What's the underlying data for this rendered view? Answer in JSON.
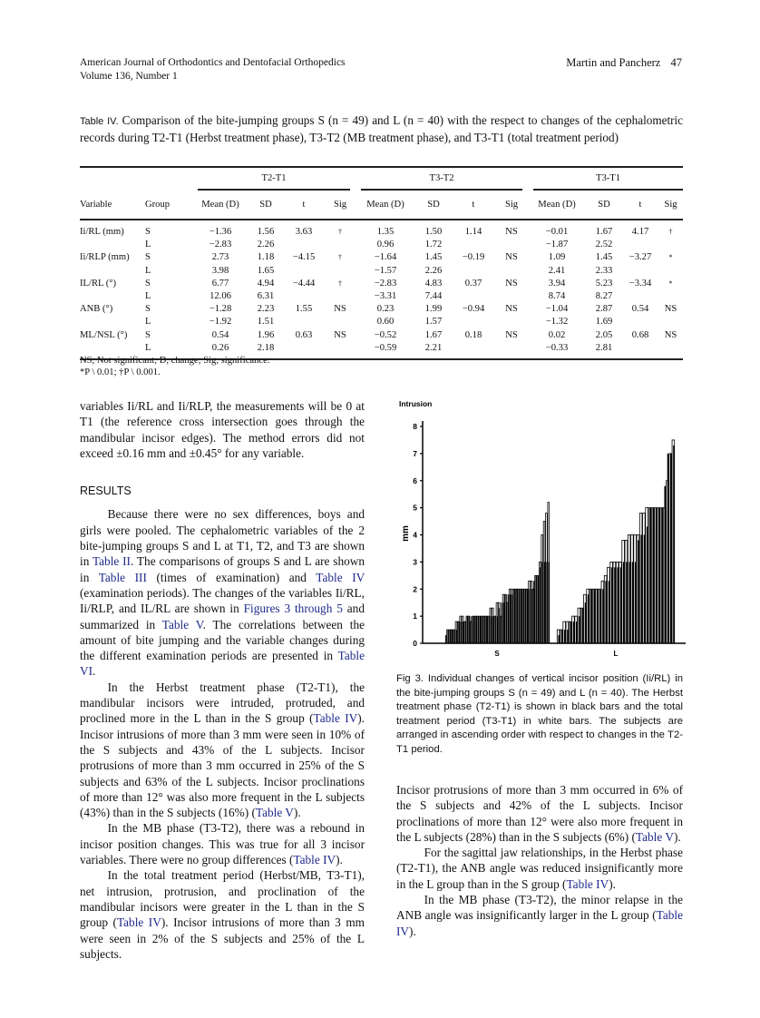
{
  "header": {
    "journal": "American Journal of Orthodontics and Dentofacial Orthopedics",
    "volume": "Volume 136, Number 1",
    "authors": "Martin and Pancherz",
    "page": "47"
  },
  "table": {
    "label": "Table IV.",
    "caption": "Comparison of the bite-jumping groups S (n = 49) and L (n = 40) with the respect to changes of the cephalometric records during T2-T1 (Herbst treatment phase), T3-T2 (MB treatment phase), and T3-T1 (total treatment period)",
    "periods": [
      "T2-T1",
      "T3-T2",
      "T3-T1"
    ],
    "columns": [
      "Variable",
      "Group",
      "Mean (D)",
      "SD",
      "t",
      "Sig",
      "Mean (D)",
      "SD",
      "t",
      "Sig",
      "Mean (D)",
      "SD",
      "t",
      "Sig"
    ],
    "rows": [
      [
        "Ii/RL (mm)",
        "S",
        "−1.36",
        "1.56",
        "3.63",
        "†",
        "1.35",
        "1.50",
        "1.14",
        "NS",
        "−0.01",
        "1.67",
        "4.17",
        "†"
      ],
      [
        "",
        "L",
        "−2.83",
        "2.26",
        "",
        "",
        "0.96",
        "1.72",
        "",
        "",
        "−1.87",
        "2.52",
        "",
        ""
      ],
      [
        "Ii/RLP (mm)",
        "S",
        "2.73",
        "1.18",
        "−4.15",
        "†",
        "−1.64",
        "1.45",
        "−0.19",
        "NS",
        "1.09",
        "1.45",
        "−3.27",
        "*"
      ],
      [
        "",
        "L",
        "3.98",
        "1.65",
        "",
        "",
        "−1.57",
        "2.26",
        "",
        "",
        "2.41",
        "2.33",
        "",
        ""
      ],
      [
        "IL/RL (°)",
        "S",
        "6.77",
        "4.94",
        "−4.44",
        "†",
        "−2.83",
        "4.83",
        "0.37",
        "NS",
        "3.94",
        "5.23",
        "−3.34",
        "*"
      ],
      [
        "",
        "L",
        "12.06",
        "6.31",
        "",
        "",
        "−3.31",
        "7.44",
        "",
        "",
        "8.74",
        "8.27",
        "",
        ""
      ],
      [
        "ANB (°)",
        "S",
        "−1.28",
        "2.23",
        "1.55",
        "NS",
        "0.23",
        "1.99",
        "−0.94",
        "NS",
        "−1.04",
        "2.87",
        "0.54",
        "NS"
      ],
      [
        "",
        "L",
        "−1.92",
        "1.51",
        "",
        "",
        "0.60",
        "1.57",
        "",
        "",
        "−1.32",
        "1.69",
        "",
        ""
      ],
      [
        "ML/NSL (°)",
        "S",
        "0.54",
        "1.96",
        "0.63",
        "NS",
        "−0.52",
        "1.67",
        "0.18",
        "NS",
        "0.02",
        "2.05",
        "0.68",
        "NS"
      ],
      [
        "",
        "L",
        "0.26",
        "2.18",
        "",
        "",
        "−0.59",
        "2.21",
        "",
        "",
        "−0.33",
        "2.81",
        "",
        ""
      ]
    ],
    "footnote1": "NS, Not significant; D, change; Sig, significance.",
    "footnote2": "*P \\ 0.01; †P \\ 0.001."
  },
  "left_column": {
    "p1": [
      {
        "t": "variables Ii/RL and Ii/RLP, the measurements will be 0 at T1 (the reference cross intersection goes through the mandibular incisor edges). The method errors did not exceed ±0.16 mm and ±0.45° for any variable."
      }
    ],
    "heading": "RESULTS",
    "p2": [
      {
        "t": "Because there were no sex differences, boys and girls were pooled. The cephalometric variables of the 2 bite-jumping groups S and L at T1, T2, and T3 are shown in "
      },
      {
        "t": "Table II",
        "link": true
      },
      {
        "t": ". The comparisons of groups S and L are shown in "
      },
      {
        "t": "Table III",
        "link": true
      },
      {
        "t": " (times of examination) and "
      },
      {
        "t": "Table IV",
        "link": true
      },
      {
        "t": " (examination periods). The changes of the variables Ii/RL, Ii/RLP, and IL/RL are shown in "
      },
      {
        "t": "Figures 3 through 5",
        "link": true
      },
      {
        "t": " and summarized in "
      },
      {
        "t": "Table V",
        "link": true
      },
      {
        "t": ". The correlations between the amount of bite jumping and the variable changes during the different examination periods are presented in "
      },
      {
        "t": "Table VI",
        "link": true
      },
      {
        "t": "."
      }
    ],
    "p3": [
      {
        "t": "In the Herbst treatment phase (T2-T1), the mandibular incisors were intruded, protruded, and proclined more in the L than in the S group ("
      },
      {
        "t": "Table IV",
        "link": true
      },
      {
        "t": "). Incisor intrusions of more than 3 mm were seen in 10% of the S subjects and 43% of the L subjects. Incisor protrusions of more than 3 mm occurred in 25% of the S subjects and 63% of the L subjects. Incisor proclinations of more than 12° was also more frequent in the L subjects (43%) than in the S subjects (16%) ("
      },
      {
        "t": "Table V",
        "link": true
      },
      {
        "t": ")."
      }
    ],
    "p4": [
      {
        "t": "In the MB phase (T3-T2), there was a rebound in incisor position changes. This was true for all 3 incisor variables. There were no group differences ("
      },
      {
        "t": "Table IV",
        "link": true
      },
      {
        "t": ")."
      }
    ],
    "p5": [
      {
        "t": "In the total treatment period (Herbst/MB, T3-T1), net intrusion, protrusion, and proclination of the mandibular incisors were greater in the L than in the S group ("
      },
      {
        "t": "Table IV",
        "link": true
      },
      {
        "t": "). Incisor intrusions of more than 3 mm were seen in 2% of the S subjects and 25% of the L subjects."
      }
    ]
  },
  "right_column": {
    "p1": [
      {
        "t": "Incisor protrusions of more than 3 mm occurred in 6% of the S subjects and 42% of the L subjects. Incisor proclinations of more than 12° were also more frequent in the L subjects (28%) than in the S subjects (6%) ("
      },
      {
        "t": "Table V",
        "link": true
      },
      {
        "t": ")."
      }
    ],
    "p2": [
      {
        "t": "For the sagittal jaw relationships, in the Herbst phase (T2-T1), the ANB angle was reduced insignificantly more in the L group than in the S group ("
      },
      {
        "t": "Table IV",
        "link": true
      },
      {
        "t": ")."
      }
    ],
    "p3": [
      {
        "t": "In the MB phase (T3-T2), the minor relapse in the ANB angle was insignificantly larger in the L group ("
      },
      {
        "t": "Table IV",
        "link": true
      },
      {
        "t": ")."
      }
    ]
  },
  "figure": {
    "caption": "Fig 3. Individual changes of vertical incisor position (Ii/RL) in the bite-jumping groups S (n = 49) and L (n = 40). The Herbst treatment phase (T2-T1) is shown in black bars and the total treatment period (T3-T1) in white bars. The subjects are arranged in ascending order with respect to changes in the T2-T1 period."
  },
  "chart_data": {
    "type": "bar",
    "title": "Intrusion",
    "ylabel": "mm",
    "ylim": [
      0,
      8
    ],
    "yticks": [
      "0",
      "1",
      "2",
      "3",
      "4",
      "5",
      "6",
      "7",
      "8"
    ],
    "grid": false,
    "groups": [
      {
        "name": "S",
        "series": [
          {
            "name": "T2-T1",
            "color": "#000000",
            "values": [
              0.3,
              0.5,
              0.5,
              0.5,
              0.5,
              0.5,
              0.8,
              0.8,
              0.8,
              0.8,
              1.0,
              1.0,
              1.0,
              1.0,
              1.0,
              1.0,
              1.0,
              1.0,
              1.0,
              1.0,
              1.0,
              1.0,
              1.0,
              1.0,
              1.0,
              1.3,
              1.5,
              1.5,
              1.8,
              1.8,
              1.8,
              1.8,
              2.0,
              2.0,
              2.0,
              2.0,
              2.0,
              2.0,
              2.0,
              2.0,
              2.0,
              2.3,
              2.5,
              2.5,
              2.8,
              3.0,
              3.0,
              3.0,
              3.0
            ]
          },
          {
            "name": "T3-T1",
            "color": "#ffffff",
            "values": [
              0.0,
              0.5,
              0.5,
              0.5,
              0.5,
              0.8,
              0.8,
              1.0,
              1.0,
              0.8,
              1.0,
              1.0,
              0.8,
              1.0,
              1.0,
              1.0,
              1.0,
              1.0,
              1.0,
              1.0,
              1.0,
              1.3,
              1.3,
              1.0,
              1.5,
              1.5,
              1.0,
              1.8,
              1.8,
              1.5,
              2.0,
              2.0,
              2.0,
              2.0,
              2.0,
              2.0,
              2.0,
              2.0,
              2.0,
              2.3,
              2.3,
              2.0,
              2.5,
              2.5,
              3.0,
              4.0,
              4.5,
              4.8,
              5.2
            ]
          }
        ]
      },
      {
        "name": "L",
        "series": [
          {
            "name": "T2-T1",
            "color": "#000000",
            "values": [
              0.3,
              0.5,
              0.5,
              0.5,
              0.8,
              0.8,
              0.8,
              1.0,
              1.3,
              1.5,
              1.8,
              2.0,
              2.0,
              2.0,
              2.0,
              2.0,
              2.3,
              2.3,
              2.8,
              2.8,
              2.8,
              2.8,
              3.0,
              3.0,
              3.0,
              3.0,
              3.0,
              3.8,
              4.0,
              4.0,
              4.3,
              5.0,
              5.0,
              5.0,
              5.0,
              5.0,
              5.8,
              7.0,
              7.0,
              7.3
            ]
          },
          {
            "name": "T3-T1",
            "color": "#ffffff",
            "values": [
              0.5,
              0.5,
              0.8,
              0.8,
              0.8,
              1.0,
              1.0,
              1.3,
              1.3,
              1.8,
              2.0,
              2.0,
              2.0,
              2.0,
              2.0,
              2.3,
              2.5,
              2.8,
              3.0,
              3.0,
              3.0,
              3.0,
              3.8,
              3.8,
              4.0,
              4.0,
              4.0,
              4.0,
              4.8,
              4.8,
              5.0,
              5.0,
              5.0,
              5.0,
              5.0,
              5.0,
              5.0,
              6.0,
              7.0,
              7.5
            ]
          }
        ]
      }
    ]
  }
}
